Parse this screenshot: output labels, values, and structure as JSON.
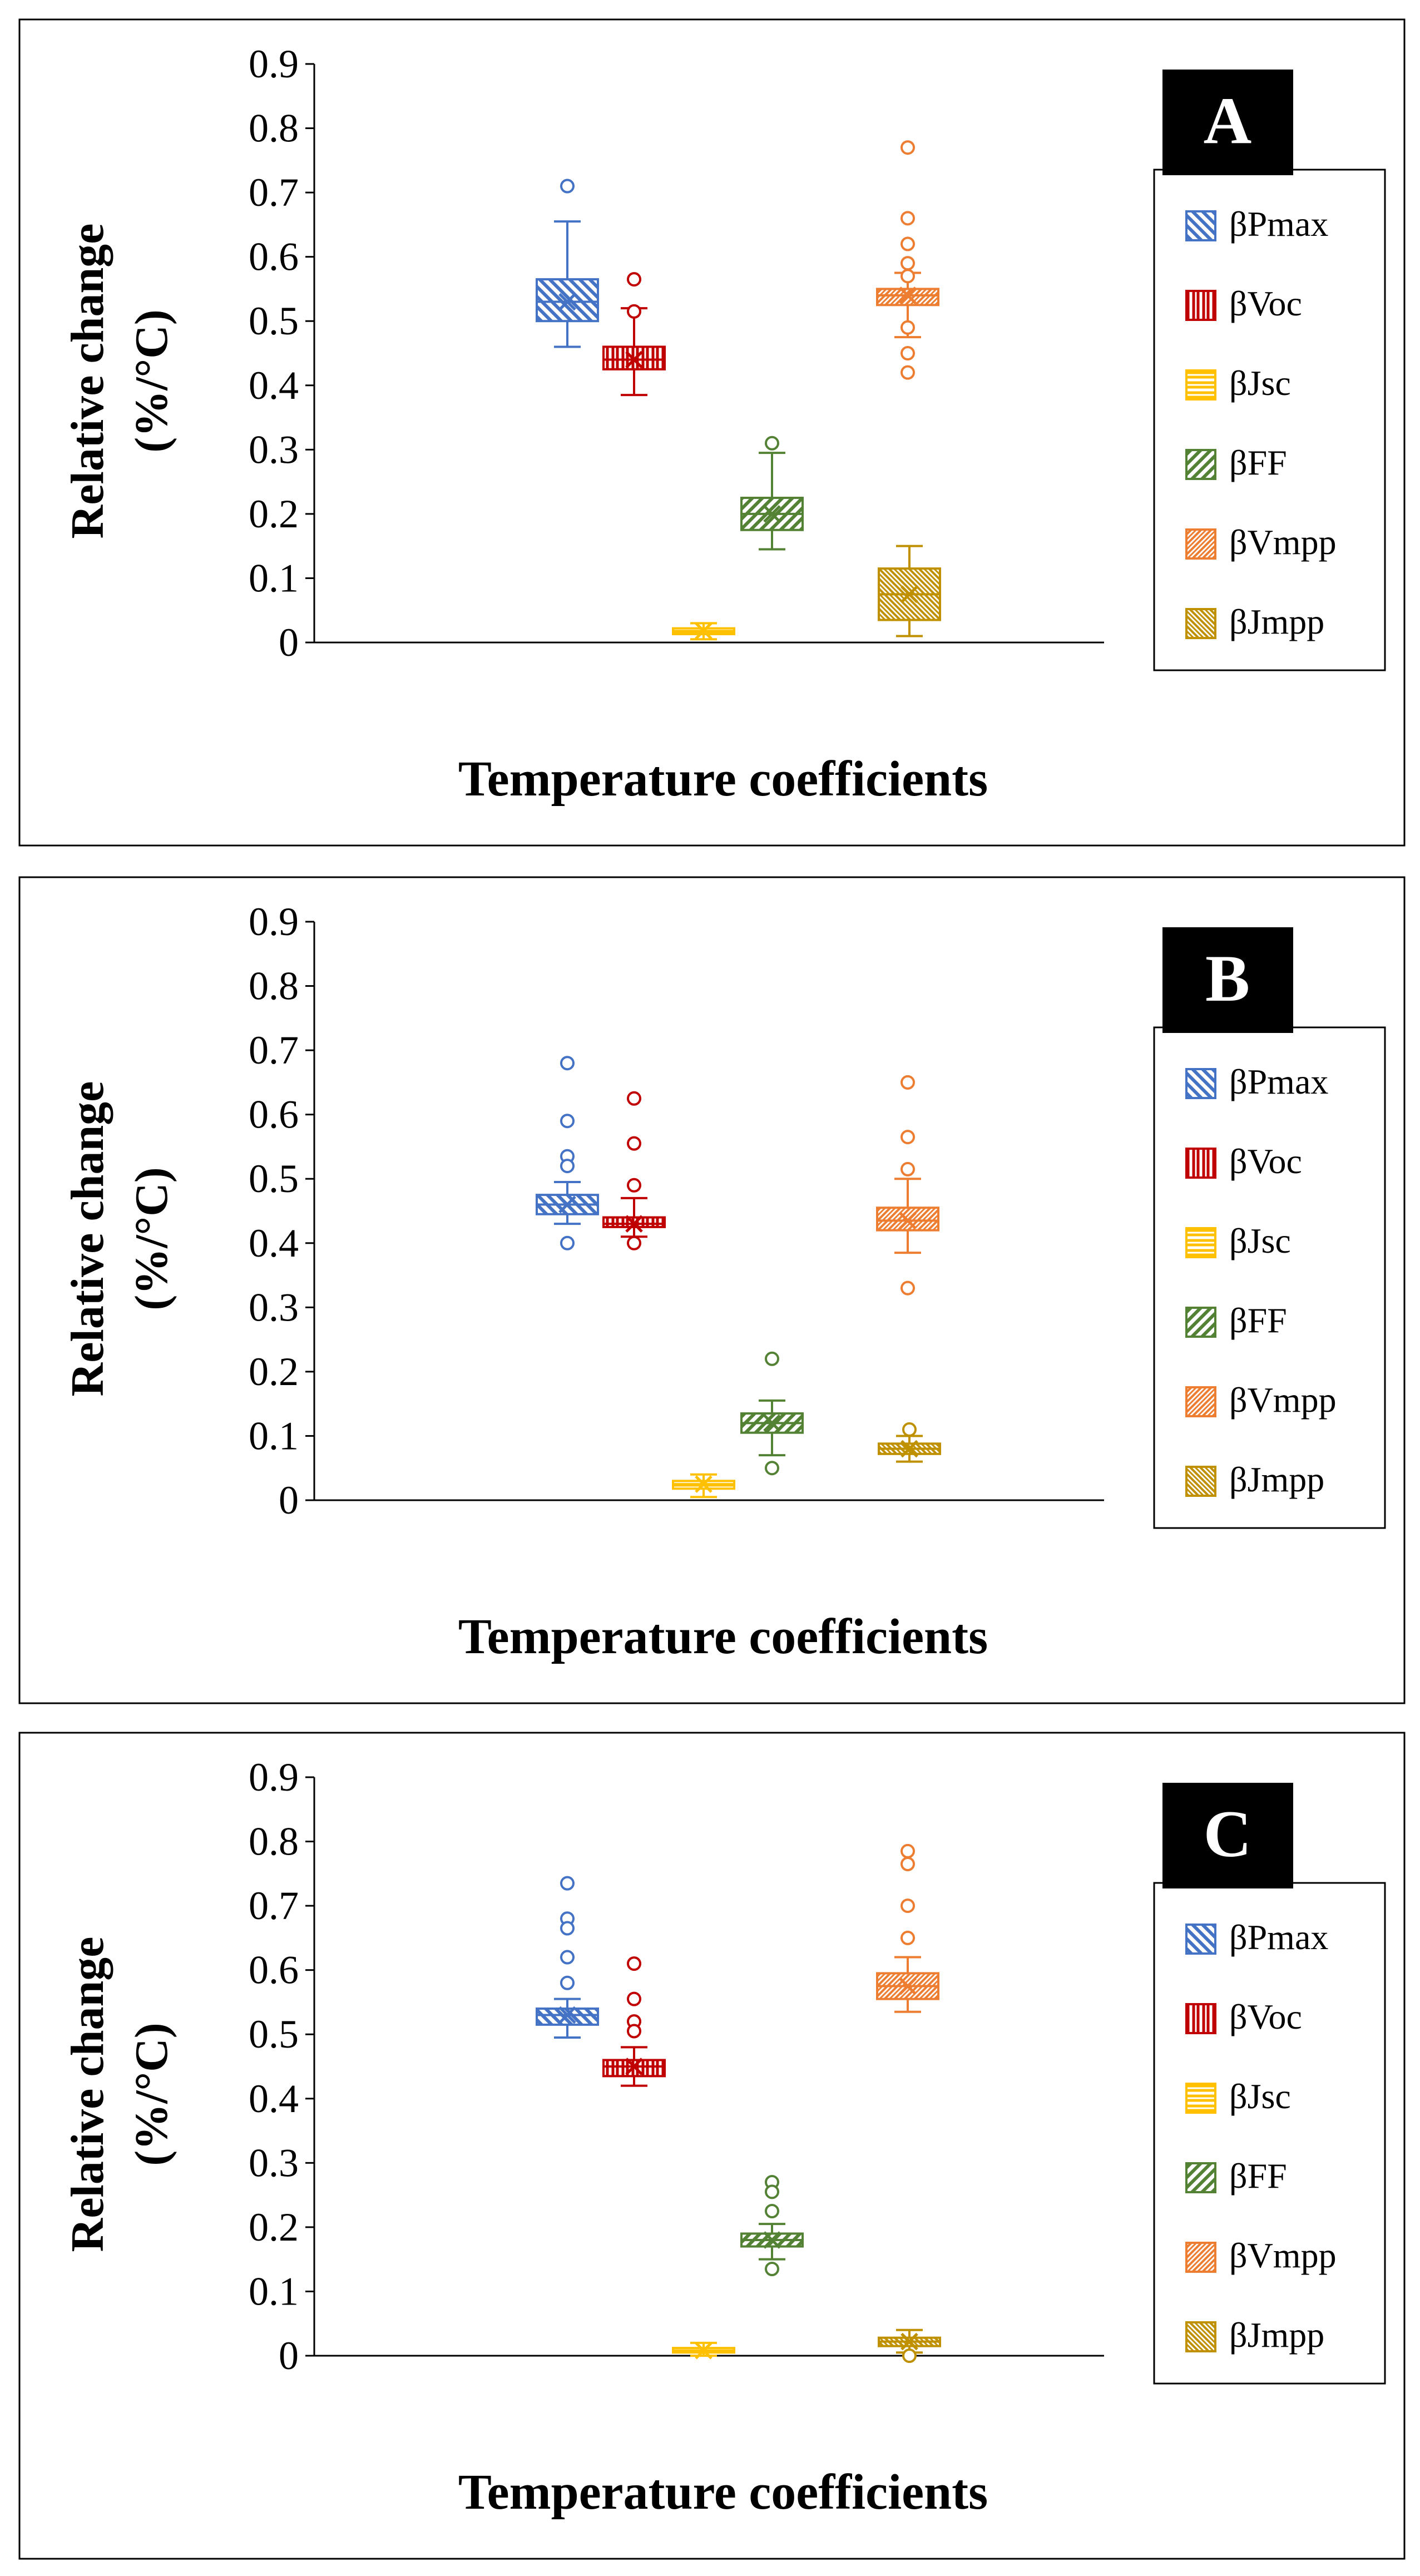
{
  "colors": {
    "pmax": "#4472C4",
    "voc": "#C00000",
    "jsc": "#FFC000",
    "ff": "#548235",
    "vmpp": "#ED7D31",
    "jmpp": "#BF9000",
    "frame": "#000000",
    "background": "#FFFFFF"
  },
  "chart_data": [
    {
      "type": "box",
      "panel_label": "A",
      "ylabel_line1": "Relative change",
      "ylabel_line2": "(%/°C)",
      "xlabel": "Temperature  coefficients",
      "ylim": [
        0,
        0.9
      ],
      "yticks": [
        "0",
        "0.1",
        "0.2",
        "0.3",
        "0.4",
        "0.5",
        "0.6",
        "0.7",
        "0.8",
        "0.9"
      ],
      "legend_position": "right",
      "series": [
        {
          "key": "pmax",
          "name": "βPmax",
          "pattern": "diag-down",
          "min": 0.46,
          "q1": 0.5,
          "median": 0.53,
          "mean": 0.53,
          "q3": 0.565,
          "max": 0.655,
          "outliers": [
            0.71
          ]
        },
        {
          "key": "voc",
          "name": "βVoc",
          "pattern": "vertical",
          "min": 0.385,
          "q1": 0.425,
          "median": 0.44,
          "mean": 0.44,
          "q3": 0.46,
          "max": 0.52,
          "outliers": [
            0.515,
            0.565
          ]
        },
        {
          "key": "jsc",
          "name": "βJsc",
          "pattern": "horizontal",
          "min": 0.005,
          "q1": 0.013,
          "median": 0.018,
          "mean": 0.018,
          "q3": 0.022,
          "max": 0.03,
          "outliers": []
        },
        {
          "key": "ff",
          "name": "βFF",
          "pattern": "diag-up",
          "min": 0.145,
          "q1": 0.175,
          "median": 0.2,
          "mean": 0.2,
          "q3": 0.225,
          "max": 0.295,
          "outliers": [
            0.31
          ]
        },
        {
          "key": "vmpp",
          "name": "βVmpp",
          "pattern": "diag-up-dense",
          "min": 0.475,
          "q1": 0.525,
          "median": 0.54,
          "mean": 0.54,
          "q3": 0.55,
          "max": 0.575,
          "outliers": [
            0.77,
            0.66,
            0.62,
            0.59,
            0.57,
            0.49,
            0.45,
            0.42
          ]
        },
        {
          "key": "jmpp",
          "name": "βJmpp",
          "pattern": "diag-down-dense",
          "min": 0.01,
          "q1": 0.035,
          "median": 0.075,
          "mean": 0.075,
          "q3": 0.115,
          "max": 0.15,
          "outliers": []
        }
      ]
    },
    {
      "type": "box",
      "panel_label": "B",
      "ylabel_line1": "Relative change",
      "ylabel_line2": "(%/°C)",
      "xlabel": "Temperature  coefficients",
      "ylim": [
        0,
        0.9
      ],
      "yticks": [
        "0",
        "0.1",
        "0.2",
        "0.3",
        "0.4",
        "0.5",
        "0.6",
        "0.7",
        "0.8",
        "0.9"
      ],
      "legend_position": "right",
      "series": [
        {
          "key": "pmax",
          "name": "βPmax",
          "pattern": "diag-down",
          "min": 0.43,
          "q1": 0.445,
          "median": 0.46,
          "mean": 0.46,
          "q3": 0.475,
          "max": 0.495,
          "outliers": [
            0.68,
            0.59,
            0.535,
            0.52,
            0.4
          ]
        },
        {
          "key": "voc",
          "name": "βVoc",
          "pattern": "vertical",
          "min": 0.41,
          "q1": 0.425,
          "median": 0.43,
          "mean": 0.43,
          "q3": 0.44,
          "max": 0.47,
          "outliers": [
            0.625,
            0.555,
            0.49,
            0.4
          ]
        },
        {
          "key": "jsc",
          "name": "βJsc",
          "pattern": "horizontal",
          "min": 0.005,
          "q1": 0.018,
          "median": 0.025,
          "mean": 0.025,
          "q3": 0.03,
          "max": 0.04,
          "outliers": []
        },
        {
          "key": "ff",
          "name": "βFF",
          "pattern": "diag-up",
          "min": 0.07,
          "q1": 0.105,
          "median": 0.12,
          "mean": 0.12,
          "q3": 0.135,
          "max": 0.155,
          "outliers": [
            0.22,
            0.05
          ]
        },
        {
          "key": "vmpp",
          "name": "βVmpp",
          "pattern": "diag-up-dense",
          "min": 0.385,
          "q1": 0.42,
          "median": 0.435,
          "mean": 0.435,
          "q3": 0.455,
          "max": 0.5,
          "outliers": [
            0.65,
            0.565,
            0.515,
            0.33
          ]
        },
        {
          "key": "jmpp",
          "name": "βJmpp",
          "pattern": "diag-down-dense",
          "min": 0.06,
          "q1": 0.072,
          "median": 0.08,
          "mean": 0.08,
          "q3": 0.088,
          "max": 0.1,
          "outliers": [
            0.11
          ]
        }
      ]
    },
    {
      "type": "box",
      "panel_label": "C",
      "ylabel_line1": "Relative change",
      "ylabel_line2": "(%/°C)",
      "xlabel": "Temperature  coefficients",
      "ylim": [
        0,
        0.9
      ],
      "yticks": [
        "0",
        "0.1",
        "0.2",
        "0.3",
        "0.4",
        "0.5",
        "0.6",
        "0.7",
        "0.8",
        "0.9"
      ],
      "legend_position": "right",
      "series": [
        {
          "key": "pmax",
          "name": "βPmax",
          "pattern": "diag-down",
          "min": 0.495,
          "q1": 0.515,
          "median": 0.53,
          "mean": 0.53,
          "q3": 0.54,
          "max": 0.555,
          "outliers": [
            0.735,
            0.68,
            0.665,
            0.62,
            0.58
          ]
        },
        {
          "key": "voc",
          "name": "βVoc",
          "pattern": "vertical",
          "min": 0.42,
          "q1": 0.435,
          "median": 0.45,
          "mean": 0.45,
          "q3": 0.46,
          "max": 0.48,
          "outliers": [
            0.61,
            0.555,
            0.52,
            0.505
          ]
        },
        {
          "key": "jsc",
          "name": "βJsc",
          "pattern": "horizontal",
          "min": 0.0,
          "q1": 0.005,
          "median": 0.008,
          "mean": 0.008,
          "q3": 0.012,
          "max": 0.02,
          "outliers": []
        },
        {
          "key": "ff",
          "name": "βFF",
          "pattern": "diag-up",
          "min": 0.15,
          "q1": 0.17,
          "median": 0.18,
          "mean": 0.18,
          "q3": 0.19,
          "max": 0.205,
          "outliers": [
            0.27,
            0.255,
            0.225,
            0.135
          ]
        },
        {
          "key": "vmpp",
          "name": "βVmpp",
          "pattern": "diag-up-dense",
          "min": 0.535,
          "q1": 0.555,
          "median": 0.575,
          "mean": 0.575,
          "q3": 0.595,
          "max": 0.62,
          "outliers": [
            0.785,
            0.765,
            0.7,
            0.65
          ]
        },
        {
          "key": "jmpp",
          "name": "βJmpp",
          "pattern": "diag-down-dense",
          "min": 0.005,
          "q1": 0.015,
          "median": 0.022,
          "mean": 0.022,
          "q3": 0.028,
          "max": 0.04,
          "outliers": [
            0.0
          ]
        }
      ]
    }
  ]
}
